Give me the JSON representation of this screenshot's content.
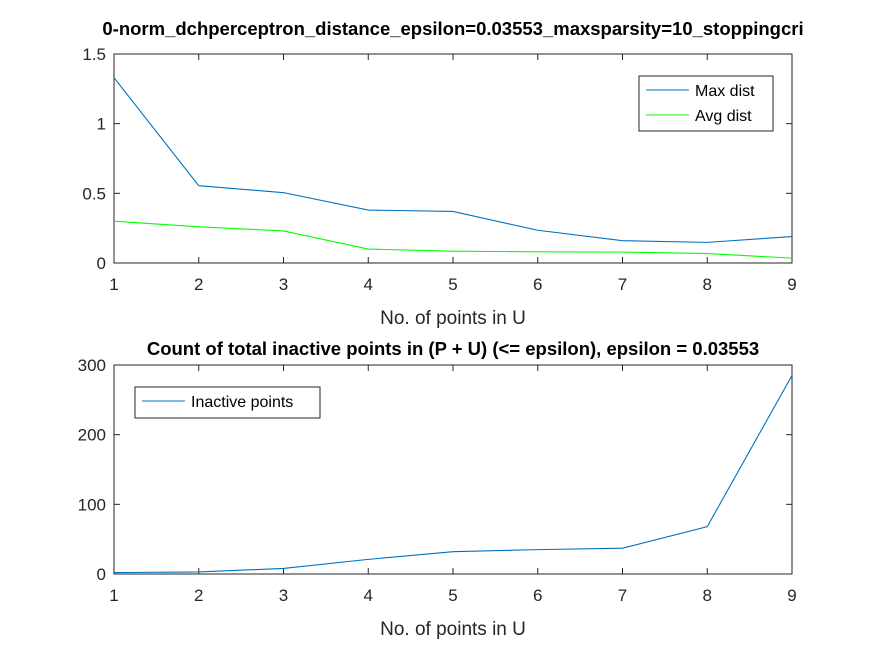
{
  "chart_data": [
    {
      "type": "line",
      "title": "0-norm_dchperceptron_distance_epsilon=0.03553_maxsparsity=10_stoppingcri",
      "xlabel": "No. of points in U",
      "ylabel": "",
      "x": [
        1,
        2,
        3,
        4,
        5,
        6,
        7,
        8,
        9
      ],
      "xlim": [
        1,
        9
      ],
      "ylim": [
        0,
        1.5
      ],
      "xticks": [
        "1",
        "2",
        "3",
        "4",
        "5",
        "6",
        "7",
        "8",
        "9"
      ],
      "yticks": [
        "0",
        "0.5",
        "1",
        "1.5"
      ],
      "legend_position": "top-right",
      "grid": false,
      "series": [
        {
          "name": "Max dist",
          "color": "#0072BD",
          "values": [
            1.33,
            0.555,
            0.505,
            0.38,
            0.37,
            0.235,
            0.16,
            0.148,
            0.19
          ]
        },
        {
          "name": "Avg dist",
          "color": "#00FF00",
          "values": [
            0.3,
            0.26,
            0.23,
            0.1,
            0.085,
            0.08,
            0.078,
            0.068,
            0.035
          ]
        }
      ]
    },
    {
      "type": "line",
      "title": "Count of total inactive points in (P + U) (<= epsilon), epsilon = 0.03553",
      "xlabel": "No. of points in U",
      "ylabel": "",
      "x": [
        1,
        2,
        3,
        4,
        5,
        6,
        7,
        8,
        9
      ],
      "xlim": [
        1,
        9
      ],
      "ylim": [
        0,
        300
      ],
      "xticks": [
        "1",
        "2",
        "3",
        "4",
        "5",
        "6",
        "7",
        "8",
        "9"
      ],
      "yticks": [
        "0",
        "100",
        "200",
        "300"
      ],
      "legend_position": "top-left",
      "grid": false,
      "series": [
        {
          "name": "Inactive points",
          "color": "#0072BD",
          "values": [
            2,
            3,
            8,
            21,
            32,
            35,
            37,
            68,
            285
          ]
        }
      ]
    }
  ]
}
